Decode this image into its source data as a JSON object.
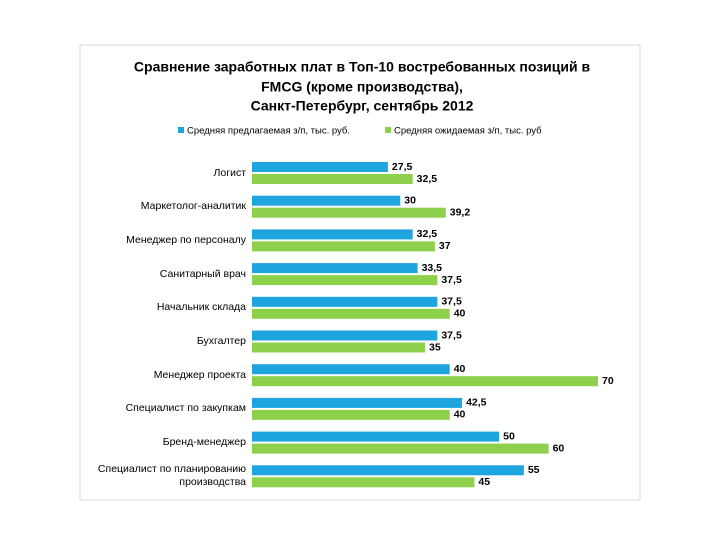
{
  "chart_data": {
    "type": "bar",
    "orientation": "horizontal",
    "title": [
      "Сравнение заработных плат в Топ-10 востребованных позиций в",
      "FMCG (кроме производства),",
      "Санкт-Петербург, сентябрь 2012"
    ],
    "categories": [
      "Логист",
      "Маркетолог-аналитик",
      "Менеджер по персоналу",
      "Санитарный врач",
      "Начальник склада",
      "Бухгалтер",
      "Менеджер проекта",
      "Специалист по закупкам",
      "Бренд-менеджер",
      "Специалист по планированию производства"
    ],
    "series": [
      {
        "name": "Средняя предлагаемая з/п, тыс. руб.",
        "color": "#1ea5e0",
        "values": [
          27.5,
          30,
          32.5,
          33.5,
          37.5,
          37.5,
          40,
          42.5,
          50,
          55
        ],
        "value_labels": [
          "27,5",
          "30",
          "32,5",
          "33,5",
          "37,5",
          "37,5",
          "40",
          "42,5",
          "50",
          "55"
        ]
      },
      {
        "name": "Средняя ожидаемая з/п, тыс. руб",
        "color": "#8dd04c",
        "values": [
          32.5,
          39.2,
          37,
          37.5,
          40,
          35,
          70,
          40,
          60,
          45
        ],
        "value_labels": [
          "32,5",
          "39,2",
          "37",
          "37,5",
          "40",
          "35",
          "70",
          "40",
          "60",
          "45"
        ]
      }
    ],
    "legend": "top"
  }
}
